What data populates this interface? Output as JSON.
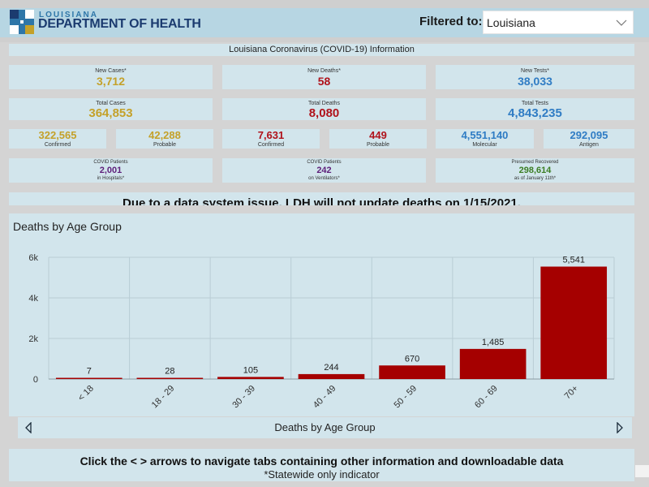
{
  "header": {
    "logo_top": "LOUISIANA",
    "logo_main": "DEPARTMENT OF HEALTH",
    "filter_label": "Filtered to:",
    "filter_value": "Louisiana"
  },
  "info_title": "Louisiana Coronavirus (COVID-19) Information",
  "colors": {
    "gold": "#c4a12a",
    "red": "#b0121b",
    "blue": "#2f7cc4",
    "purple": "#5e1f7a",
    "green": "#3b7d23",
    "bar": "#a50000"
  },
  "stats": {
    "new_cases": {
      "label": "New Cases*",
      "value": "3,712"
    },
    "new_deaths": {
      "label": "New Deaths*",
      "value": "58"
    },
    "new_tests": {
      "label": "New Tests*",
      "value": "38,033"
    },
    "total_cases": {
      "label": "Total Cases",
      "value": "364,853"
    },
    "total_deaths": {
      "label": "Total Deaths",
      "value": "8,080"
    },
    "total_tests": {
      "label": "Total Tests",
      "value": "4,843,235"
    },
    "confirmed_cases": {
      "label": "Confirmed",
      "value": "322,565"
    },
    "probable_cases": {
      "label": "Probable",
      "value": "42,288"
    },
    "confirmed_deaths": {
      "label": "Confirmed",
      "value": "7,631"
    },
    "probable_deaths": {
      "label": "Probable",
      "value": "449"
    },
    "molecular_tests": {
      "label": "Molecular",
      "value": "4,551,140"
    },
    "antigen_tests": {
      "label": "Antigen",
      "value": "292,095"
    },
    "hospital": {
      "label_top": "COVID Patients",
      "value": "2,001",
      "label_bottom": "in Hospitals*"
    },
    "ventilators": {
      "label_top": "COVID Patients",
      "value": "242",
      "label_bottom": "on Ventilators*"
    },
    "recovered": {
      "label_top": "Presumed Recovered",
      "value": "298,614",
      "label_bottom": "as of January 11th*"
    }
  },
  "notice": "Due to a data system issue, LDH will not update deaths on 1/15/2021.",
  "chart_data": {
    "type": "bar",
    "title": "Deaths by Age Group",
    "categories": [
      "< 18",
      "18 - 29",
      "30 - 39",
      "40 - 49",
      "50 - 59",
      "60 - 69",
      "70+"
    ],
    "values": [
      7,
      28,
      105,
      244,
      670,
      1485,
      5541
    ],
    "data_labels": [
      "7",
      "28",
      "105",
      "244",
      "670",
      "1,485",
      "5,541"
    ],
    "ylim": [
      0,
      6000
    ],
    "yticks": [
      0,
      2000,
      4000,
      6000
    ],
    "ytick_labels": [
      "0",
      "2k",
      "4k",
      "6k"
    ],
    "grid": true,
    "xlabel": "",
    "ylabel": ""
  },
  "tabs": {
    "current_label": "Deaths by Age Group"
  },
  "footer": {
    "line1": "Click the < > arrows to navigate tabs containing other information and downloadable data",
    "line2": "*Statewide only indicator"
  }
}
